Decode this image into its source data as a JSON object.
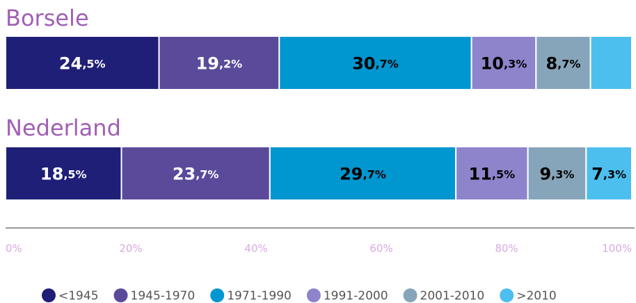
{
  "chart_data": {
    "type": "stacked-barh",
    "categories": [
      "Borsele",
      "Nederland"
    ],
    "series": [
      {
        "name": "<1945",
        "color": "#1f1f78",
        "label_color": "#ffffff",
        "values": [
          24.5,
          18.5
        ],
        "value_labels": [
          "24,5%",
          "18,5%"
        ]
      },
      {
        "name": "1945-1970",
        "color": "#5b4a9a",
        "label_color": "#ffffff",
        "values": [
          19.2,
          23.7
        ],
        "value_labels": [
          "19,2%",
          "23,7%"
        ]
      },
      {
        "name": "1971-1990",
        "color": "#0096cf",
        "label_color": "#000000",
        "values": [
          30.7,
          29.7
        ],
        "value_labels": [
          "30,7%",
          "29,7%"
        ]
      },
      {
        "name": "1991-2000",
        "color": "#8e84cc",
        "label_color": "#000000",
        "values": [
          10.3,
          11.5
        ],
        "value_labels": [
          "10,3%",
          "11,5%"
        ]
      },
      {
        "name": "2001-2010",
        "color": "#87a5ba",
        "label_color": "#000000",
        "values": [
          8.7,
          9.3
        ],
        "value_labels": [
          "8,7%",
          "9,3%"
        ]
      },
      {
        "name": ">2010",
        "color": "#4dbfef",
        "label_color": "#000000",
        "values": [
          6.6,
          7.3
        ],
        "value_labels": [
          null,
          "7,3%"
        ]
      }
    ],
    "xlim": [
      0,
      100
    ],
    "xticks": [
      {
        "value": 0,
        "label": "0%"
      },
      {
        "value": 20,
        "label": "20%"
      },
      {
        "value": 40,
        "label": "40%"
      },
      {
        "value": 60,
        "label": "60%"
      },
      {
        "value": 80,
        "label": "80%"
      },
      {
        "value": 100,
        "label": "100%"
      }
    ],
    "legend": "bottom"
  }
}
